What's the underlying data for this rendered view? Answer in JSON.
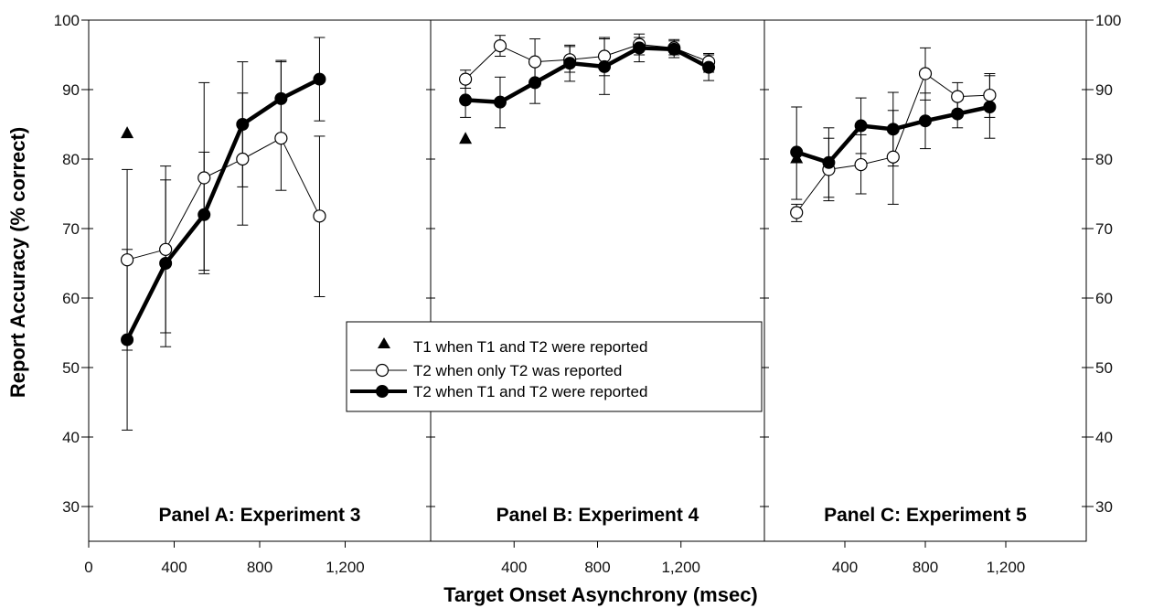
{
  "chart_data": {
    "type": "line",
    "ylabel": "Report Accuracy (% correct)",
    "xlabel": "Target Onset Asynchrony (msec)",
    "ylim": [
      25,
      100
    ],
    "yticks": [
      30,
      40,
      50,
      60,
      70,
      80,
      90,
      100
    ],
    "grid": false,
    "legend": {
      "position": "center",
      "entries": [
        "T1 when T1 and T2 were reported",
        "T2 when only T2 was reported",
        "T2 when T1 and T2 were reported"
      ]
    },
    "panels": [
      {
        "title": "Panel A: Experiment 3",
        "xlim": [
          0,
          1600
        ],
        "xticks": [
          0,
          400,
          800,
          1200
        ],
        "xtick_labels": [
          "0",
          "400",
          "800",
          "1,200"
        ],
        "series": [
          {
            "name": "T1 when T1 and T2 were reported",
            "marker": "triangle",
            "points": [
              {
                "x": 180,
                "y": 83.8
              }
            ]
          },
          {
            "name": "T2 when only T2 was reported",
            "marker": "open-circle",
            "points": [
              {
                "x": 180,
                "y": 65.5,
                "err": [
                  52.5,
                  78.5
                ]
              },
              {
                "x": 360,
                "y": 67.0,
                "err": [
                  55.0,
                  79.0
                ]
              },
              {
                "x": 540,
                "y": 77.3,
                "err": [
                  64.0,
                  91.0
                ]
              },
              {
                "x": 720,
                "y": 80.0,
                "err": [
                  70.5,
                  89.5
                ]
              },
              {
                "x": 900,
                "y": 83.0,
                "err": [
                  75.5,
                  94.0
                ]
              },
              {
                "x": 1080,
                "y": 71.8,
                "err": [
                  60.2,
                  83.3
                ]
              }
            ]
          },
          {
            "name": "T2 when T1 and T2 were reported",
            "marker": "filled-circle",
            "points": [
              {
                "x": 180,
                "y": 54.0,
                "err": [
                  41.0,
                  67.0
                ]
              },
              {
                "x": 360,
                "y": 65.0,
                "err": [
                  53.0,
                  77.0
                ]
              },
              {
                "x": 540,
                "y": 72.0,
                "err": [
                  63.5,
                  81.0
                ]
              },
              {
                "x": 720,
                "y": 85.0,
                "err": [
                  76.0,
                  94.0
                ]
              },
              {
                "x": 900,
                "y": 88.7,
                "err": [
                  83.0,
                  94.2
                ]
              },
              {
                "x": 1080,
                "y": 91.5,
                "err": [
                  85.5,
                  97.5
                ]
              }
            ]
          }
        ]
      },
      {
        "title": "Panel B: Experiment 4",
        "xlim": [
          0,
          1600
        ],
        "xticks": [
          400,
          800,
          1200
        ],
        "xtick_labels": [
          "400",
          "800",
          "1,200"
        ],
        "series": [
          {
            "name": "T1 when T1 and T2 were reported",
            "marker": "triangle",
            "points": [
              {
                "x": 167,
                "y": 83.0
              }
            ]
          },
          {
            "name": "T2 when only T2 was reported",
            "marker": "open-circle",
            "points": [
              {
                "x": 167,
                "y": 91.5,
                "err": [
                  90.2,
                  92.8
                ]
              },
              {
                "x": 333,
                "y": 96.3,
                "err": [
                  94.8,
                  97.8
                ]
              },
              {
                "x": 500,
                "y": 94.0,
                "err": [
                  90.5,
                  97.3
                ]
              },
              {
                "x": 667,
                "y": 94.3,
                "err": [
                  92.5,
                  96.2
                ]
              },
              {
                "x": 833,
                "y": 94.8,
                "err": [
                  92.0,
                  97.5
                ]
              },
              {
                "x": 1000,
                "y": 96.5,
                "err": [
                  95.0,
                  98.0
                ]
              },
              {
                "x": 1167,
                "y": 96.0,
                "err": [
                  95.0,
                  97.0
                ]
              },
              {
                "x": 1333,
                "y": 94.0,
                "err": [
                  92.5,
                  95.2
                ]
              }
            ]
          },
          {
            "name": "T2 when T1 and T2 were reported",
            "marker": "filled-circle",
            "points": [
              {
                "x": 167,
                "y": 88.5,
                "err": [
                  86.0,
                  91.0
                ]
              },
              {
                "x": 333,
                "y": 88.2,
                "err": [
                  84.5,
                  91.8
                ]
              },
              {
                "x": 500,
                "y": 91.0,
                "err": [
                  88.0,
                  94.0
                ]
              },
              {
                "x": 667,
                "y": 93.8,
                "err": [
                  91.2,
                  96.4
                ]
              },
              {
                "x": 833,
                "y": 93.3,
                "err": [
                  89.3,
                  97.3
                ]
              },
              {
                "x": 1000,
                "y": 96.0,
                "err": [
                  94.0,
                  97.5
                ]
              },
              {
                "x": 1167,
                "y": 95.8,
                "err": [
                  94.6,
                  97.2
                ]
              },
              {
                "x": 1333,
                "y": 93.2,
                "err": [
                  91.3,
                  95.0
                ]
              }
            ]
          }
        ]
      },
      {
        "title": "Panel C: Experiment 5",
        "xlim": [
          0,
          1600
        ],
        "xticks": [
          400,
          800,
          1200
        ],
        "xtick_labels": [
          "400",
          "800",
          "1,200"
        ],
        "series": [
          {
            "name": "T1 when T1 and T2 were reported",
            "marker": "triangle",
            "points": [
              {
                "x": 160,
                "y": 80.2
              }
            ]
          },
          {
            "name": "T2 when only T2 was reported",
            "marker": "open-circle",
            "points": [
              {
                "x": 160,
                "y": 72.3,
                "err": [
                  71.0,
                  73.5
                ]
              },
              {
                "x": 320,
                "y": 78.5,
                "err": [
                  74.0,
                  83.0
                ]
              },
              {
                "x": 480,
                "y": 79.2,
                "err": [
                  75.0,
                  83.5
                ]
              },
              {
                "x": 640,
                "y": 80.3,
                "err": [
                  73.5,
                  87.0
                ]
              },
              {
                "x": 800,
                "y": 92.3,
                "err": [
                  88.5,
                  96.0
                ]
              },
              {
                "x": 960,
                "y": 89.0,
                "err": [
                  87.0,
                  91.0
                ]
              },
              {
                "x": 1120,
                "y": 89.2,
                "err": [
                  86.0,
                  92.3
                ]
              }
            ]
          },
          {
            "name": "T2 when T1 and T2 were reported",
            "marker": "filled-circle",
            "points": [
              {
                "x": 160,
                "y": 81.0,
                "err": [
                  74.2,
                  87.5
                ]
              },
              {
                "x": 320,
                "y": 79.5,
                "err": [
                  74.5,
                  84.5
                ]
              },
              {
                "x": 480,
                "y": 84.8,
                "err": [
                  80.8,
                  88.8
                ]
              },
              {
                "x": 640,
                "y": 84.3,
                "err": [
                  79.0,
                  89.6
                ]
              },
              {
                "x": 800,
                "y": 85.5,
                "err": [
                  81.5,
                  89.5
                ]
              },
              {
                "x": 960,
                "y": 86.5,
                "err": [
                  84.5,
                  88.5
                ]
              },
              {
                "x": 1120,
                "y": 87.5,
                "err": [
                  83.0,
                  92.0
                ]
              }
            ]
          }
        ]
      }
    ]
  }
}
